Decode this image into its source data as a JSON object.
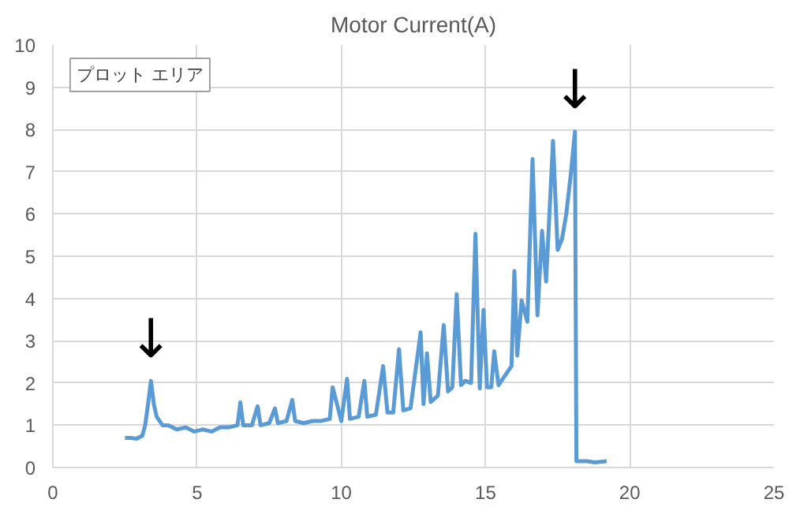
{
  "chart_data": {
    "type": "line",
    "title": "Motor Current(A)",
    "x": [
      2.5,
      2.7,
      2.9,
      3.1,
      3.2,
      3.3,
      3.4,
      3.5,
      3.6,
      3.8,
      4.0,
      4.3,
      4.6,
      4.9,
      5.2,
      5.5,
      5.8,
      6.1,
      6.4,
      6.5,
      6.6,
      6.9,
      7.1,
      7.2,
      7.5,
      7.7,
      7.8,
      8.1,
      8.3,
      8.4,
      8.7,
      9.0,
      9.3,
      9.6,
      9.7,
      10.0,
      10.2,
      10.3,
      10.6,
      10.8,
      10.9,
      11.2,
      11.45,
      11.6,
      11.8,
      12.0,
      12.15,
      12.4,
      12.75,
      12.85,
      12.97,
      13.1,
      13.35,
      13.55,
      13.7,
      13.85,
      14.0,
      14.15,
      14.3,
      14.5,
      14.65,
      14.8,
      14.93,
      15.05,
      15.2,
      15.3,
      15.45,
      15.7,
      15.9,
      16.0,
      16.1,
      16.25,
      16.45,
      16.63,
      16.8,
      16.96,
      17.1,
      17.34,
      17.5,
      17.65,
      17.8,
      17.95,
      18.1,
      18.15,
      18.5,
      18.8,
      19.2
    ],
    "series": [
      {
        "color": "#5b9bd5",
        "values": [
          0.7,
          0.7,
          0.68,
          0.75,
          1.0,
          1.5,
          2.05,
          1.5,
          1.2,
          1.0,
          1.0,
          0.9,
          0.95,
          0.85,
          0.9,
          0.85,
          0.95,
          0.95,
          1.0,
          1.54,
          1.0,
          1.0,
          1.45,
          1.0,
          1.05,
          1.4,
          1.05,
          1.1,
          1.6,
          1.1,
          1.05,
          1.1,
          1.1,
          1.15,
          1.9,
          1.1,
          2.1,
          1.15,
          1.2,
          2.05,
          1.2,
          1.25,
          2.4,
          1.3,
          1.3,
          2.8,
          1.35,
          1.4,
          3.2,
          1.5,
          2.7,
          1.55,
          1.7,
          3.37,
          1.8,
          1.9,
          4.1,
          1.95,
          2.05,
          2.0,
          5.53,
          1.87,
          3.73,
          1.9,
          1.9,
          2.75,
          1.95,
          2.2,
          2.4,
          4.65,
          2.65,
          3.95,
          3.45,
          7.3,
          3.6,
          5.6,
          4.4,
          7.73,
          5.15,
          5.4,
          6.0,
          6.9,
          7.95,
          0.15,
          0.15,
          0.12,
          0.15
        ]
      }
    ],
    "xlim": [
      0,
      25
    ],
    "xticks": [
      0,
      5,
      10,
      15,
      20,
      25
    ],
    "ylim": [
      0,
      10
    ],
    "yticks": [
      0,
      1,
      2,
      3,
      4,
      5,
      6,
      7,
      8,
      9,
      10
    ],
    "grid": true,
    "marker": "none",
    "line_style": "solid",
    "annotations": [
      "プロット エリア",
      {
        "text": "↓",
        "x": 3.4,
        "y": 2.05
      },
      {
        "text": "↓",
        "x": 18.1,
        "y": 7.95
      }
    ]
  }
}
